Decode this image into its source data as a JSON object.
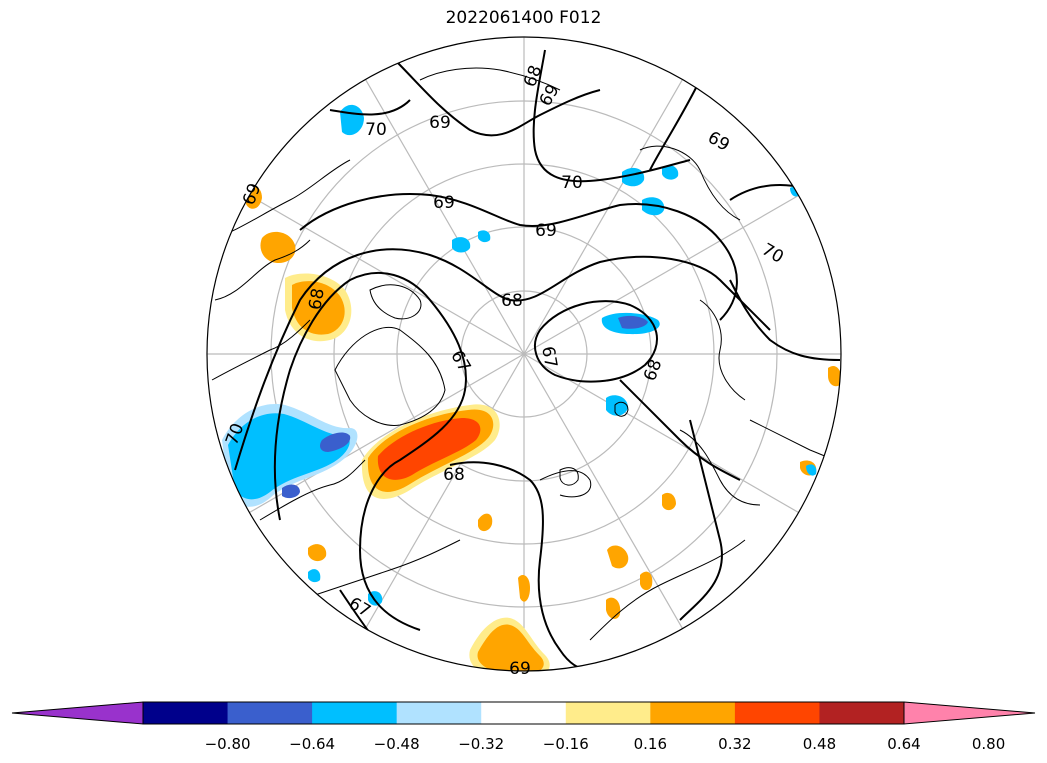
{
  "title": "2022061400 F012",
  "contour_labels": [
    {
      "text": "68"
    },
    {
      "text": "69"
    },
    {
      "text": "70"
    },
    {
      "text": "69"
    },
    {
      "text": "69"
    },
    {
      "text": "70"
    },
    {
      "text": "69"
    },
    {
      "text": "69"
    },
    {
      "text": "70"
    },
    {
      "text": "68"
    },
    {
      "text": "67"
    },
    {
      "text": "67"
    },
    {
      "text": "68"
    },
    {
      "text": "68"
    },
    {
      "text": "67"
    },
    {
      "text": "69"
    },
    {
      "text": "70"
    },
    {
      "text": "69"
    },
    {
      "text": "68"
    }
  ],
  "colorbar": {
    "colors": [
      "#9932cc",
      "#00008b",
      "#3a5fcd",
      "#00bfff",
      "#b0e2ff",
      "#ffffff",
      "#ffec8b",
      "#ffa500",
      "#ff4500",
      "#b22222",
      "#ff82ab"
    ],
    "tick_labels": [
      "−0.80",
      "−0.64",
      "−0.48",
      "−0.32",
      "−0.16",
      "0.16",
      "0.32",
      "0.48",
      "0.64",
      "0.80"
    ]
  },
  "colors": {
    "orange": "#ffa500",
    "red_orange": "#ff4500",
    "light_yellow": "#ffec8b",
    "deep_sky_blue": "#00bfff",
    "light_blue": "#b0e2ff",
    "royal_blue": "#3a5fcd",
    "gridline": "#bbbbbb"
  }
}
